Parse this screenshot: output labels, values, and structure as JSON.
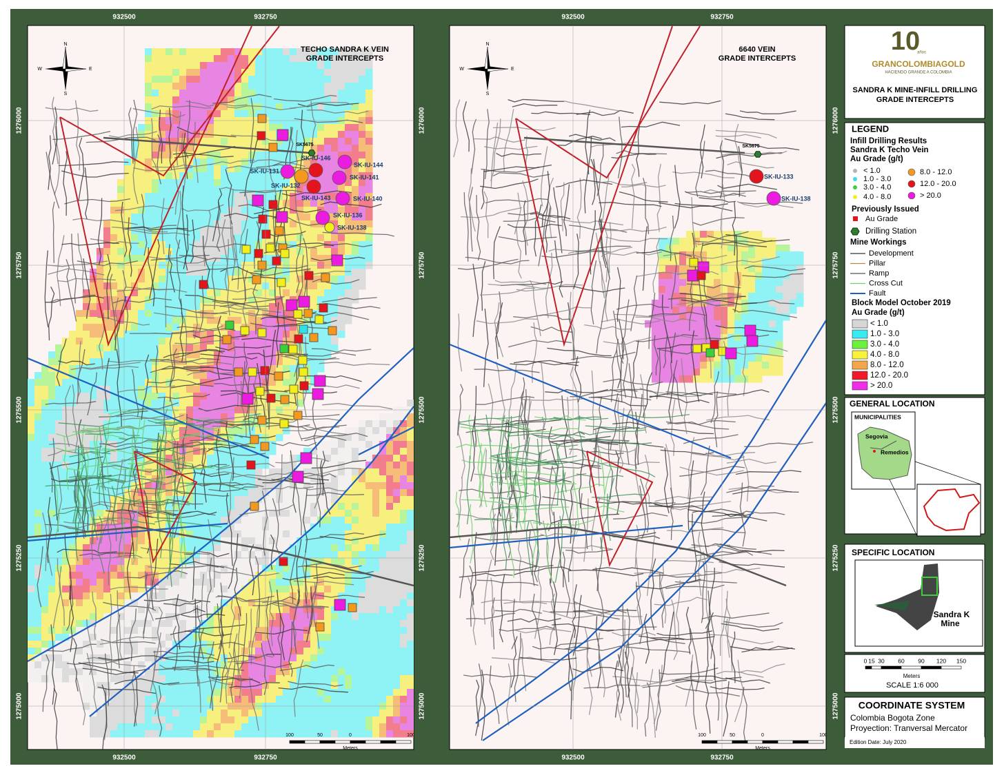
{
  "left_map": {
    "title_lines": [
      "TECHO SANDRA K VEIN",
      "GRADE INTERCEPTS"
    ],
    "x_labels": [
      "932500",
      "932750"
    ],
    "y_labels": [
      "1276000",
      "1275750",
      "1275500",
      "1275250",
      "1275000"
    ],
    "station": "SK5675",
    "drillholes": [
      "SK-IU-146",
      "SK-IU-131",
      "SK-IU-132",
      "SK-IU-143",
      "SK-IU-144",
      "SK-IU-141",
      "SK-IU-140",
      "SK-IU-136",
      "SK-IU-138"
    ],
    "scale_labels": [
      "100",
      "50",
      "0",
      "100"
    ],
    "scale_unit": "Meters"
  },
  "right_map": {
    "title_lines": [
      "6640 VEIN",
      "GRADE INTERCEPTS"
    ],
    "x_labels": [
      "932500",
      "932750"
    ],
    "y_labels": [
      "1276000",
      "1275750",
      "1275500",
      "1275250",
      "1275000"
    ],
    "station": "SK5675",
    "drillholes": [
      "SK-IU-133",
      "SK-IU-138"
    ],
    "scale_labels": [
      "100",
      "50",
      "0",
      "100"
    ],
    "scale_unit": "Meters"
  },
  "north_arrow": {
    "n": "N",
    "e": "E",
    "s": "S",
    "w": "W"
  },
  "logo": {
    "number": "10",
    "years": "años",
    "name": "GRANCOLOMBIAGOLD",
    "tagline": "HACIENDO GRANDE A COLOMBIA"
  },
  "panel_title": [
    "SANDRA K MINE-INFILL DRILLING",
    "GRADE INTERCEPTS"
  ],
  "legend": {
    "title": "LEGEND",
    "drilling_heading": [
      "Infill Drilling Results",
      "Sandra K Techo Vein",
      "Au Grade (g/t)"
    ],
    "drilling_grades": [
      {
        "label": "< 1.0",
        "color": "#b4b4b4"
      },
      {
        "label": "1.0 - 3.0",
        "color": "#33e0e8"
      },
      {
        "label": "3.0 - 4.0",
        "color": "#3ccf3c"
      },
      {
        "label": "4.0 - 8.0",
        "color": "#f2ee1a"
      },
      {
        "label": "8.0 - 12.0",
        "color": "#f39a1e"
      },
      {
        "label": "12.0 - 20.0",
        "color": "#e3141b"
      },
      {
        "label": "> 20.0",
        "color": "#ec1be0"
      }
    ],
    "previous_heading": "Previously Issued",
    "previous_item": {
      "label": "Au Grade",
      "color": "#e3141b"
    },
    "station_item": {
      "label": "Drilling Station",
      "color": "#2e7d32"
    },
    "workings_heading": "Mine Workings",
    "workings": [
      {
        "label": "Development",
        "color": "#333333"
      },
      {
        "label": "Pillar",
        "color": "#b08a4a"
      },
      {
        "label": "Ramp",
        "color": "#555555"
      },
      {
        "label": "Cross Cut",
        "color": "#6ccf6c"
      },
      {
        "label": "Fault",
        "color": "#1f5fbf"
      }
    ],
    "block_heading": [
      "Block Model October 2019",
      "Au Grade (g/t)"
    ],
    "block_grades": [
      {
        "label": "< 1.0",
        "color": "#d6d6d6"
      },
      {
        "label": "1.0 - 3.0",
        "color": "#36ecf0"
      },
      {
        "label": "3.0 - 4.0",
        "color": "#6bf03c"
      },
      {
        "label": "4.0 - 8.0",
        "color": "#f7f23a"
      },
      {
        "label": "8.0 - 12.0",
        "color": "#f4a64a"
      },
      {
        "label": "12.0 - 20.0",
        "color": "#f0182a"
      },
      {
        "label": "> 20.0",
        "color": "#ee2ee6"
      }
    ]
  },
  "general_location": {
    "title": "GENERAL LOCATION",
    "municipalities": "MUNICIPALITIES",
    "places": [
      "Segovia",
      "Remedios"
    ]
  },
  "specific_location": {
    "title": "SPECIFIC LOCATION",
    "place_lines": [
      "Sandra K",
      "Mine"
    ]
  },
  "scale": {
    "ticks": [
      "0",
      "15",
      "30",
      "60",
      "90",
      "120",
      "150"
    ],
    "unit": "Meters",
    "ratio": "SCALE 1:6 000"
  },
  "coordinate_system": {
    "title": "COORDINATE SYSTEM",
    "lines": [
      "Colombia Bogota Zone",
      "Proyection: Tranversal Mercator"
    ]
  },
  "edition": "Edition Date: July 2020"
}
